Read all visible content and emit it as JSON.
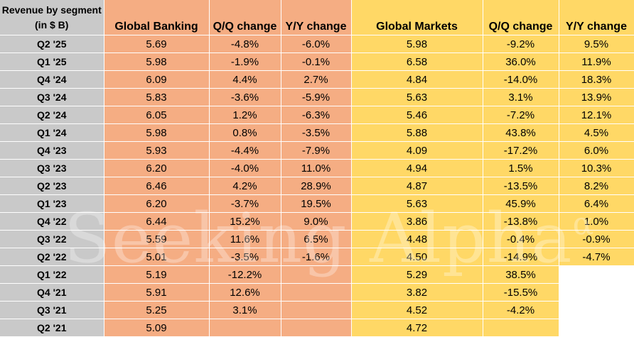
{
  "header": {
    "label": "Revenue by segment (in $ B)",
    "banking": "Global Banking",
    "banking_qq": "Q/Q change",
    "banking_yy": "Y/Y change",
    "markets": "Global Markets",
    "markets_qq": "Q/Q change",
    "markets_yy": "Y/Y change"
  },
  "rows": [
    {
      "period": "Q2 '25",
      "gb": "5.69",
      "gb_qq": "-4.8%",
      "gb_yy": "-6.0%",
      "gm": "5.98",
      "gm_qq": "-9.2%",
      "gm_yy": "9.5%"
    },
    {
      "period": "Q1 '25",
      "gb": "5.98",
      "gb_qq": "-1.9%",
      "gb_yy": "-0.1%",
      "gm": "6.58",
      "gm_qq": "36.0%",
      "gm_yy": "11.9%"
    },
    {
      "period": "Q4 '24",
      "gb": "6.09",
      "gb_qq": "4.4%",
      "gb_yy": "2.7%",
      "gm": "4.84",
      "gm_qq": "-14.0%",
      "gm_yy": "18.3%"
    },
    {
      "period": "Q3 '24",
      "gb": "5.83",
      "gb_qq": "-3.6%",
      "gb_yy": "-5.9%",
      "gm": "5.63",
      "gm_qq": "3.1%",
      "gm_yy": "13.9%"
    },
    {
      "period": "Q2 '24",
      "gb": "6.05",
      "gb_qq": "1.2%",
      "gb_yy": "-6.3%",
      "gm": "5.46",
      "gm_qq": "-7.2%",
      "gm_yy": "12.1%"
    },
    {
      "period": "Q1 '24",
      "gb": "5.98",
      "gb_qq": "0.8%",
      "gb_yy": "-3.5%",
      "gm": "5.88",
      "gm_qq": "43.8%",
      "gm_yy": "4.5%"
    },
    {
      "period": "Q4 '23",
      "gb": "5.93",
      "gb_qq": "-4.4%",
      "gb_yy": "-7.9%",
      "gm": "4.09",
      "gm_qq": "-17.2%",
      "gm_yy": "6.0%"
    },
    {
      "period": "Q3 '23",
      "gb": "6.20",
      "gb_qq": "-4.0%",
      "gb_yy": "11.0%",
      "gm": "4.94",
      "gm_qq": "1.5%",
      "gm_yy": "10.3%"
    },
    {
      "period": "Q2 '23",
      "gb": "6.46",
      "gb_qq": "4.2%",
      "gb_yy": "28.9%",
      "gm": "4.87",
      "gm_qq": "-13.5%",
      "gm_yy": "8.2%"
    },
    {
      "period": "Q1 '23",
      "gb": "6.20",
      "gb_qq": "-3.7%",
      "gb_yy": "19.5%",
      "gm": "5.63",
      "gm_qq": "45.9%",
      "gm_yy": "6.4%"
    },
    {
      "period": "Q4 '22",
      "gb": "6.44",
      "gb_qq": "15.2%",
      "gb_yy": "9.0%",
      "gm": "3.86",
      "gm_qq": "-13.8%",
      "gm_yy": "1.0%"
    },
    {
      "period": "Q3 '22",
      "gb": "5.59",
      "gb_qq": "11.6%",
      "gb_yy": "6.5%",
      "gm": "4.48",
      "gm_qq": "-0.4%",
      "gm_yy": "-0.9%"
    },
    {
      "period": "Q2 '22",
      "gb": "5.01",
      "gb_qq": "-3.5%",
      "gb_yy": "-1.6%",
      "gm": "4.50",
      "gm_qq": "-14.9%",
      "gm_yy": "-4.7%"
    },
    {
      "period": "Q1 '22",
      "gb": "5.19",
      "gb_qq": "-12.2%",
      "gb_yy": "",
      "gm": "5.29",
      "gm_qq": "38.5%",
      "gm_yy": ""
    },
    {
      "period": "Q4 '21",
      "gb": "5.91",
      "gb_qq": "12.6%",
      "gb_yy": "",
      "gm": "3.82",
      "gm_qq": "-15.5%",
      "gm_yy": ""
    },
    {
      "period": "Q3 '21",
      "gb": "5.25",
      "gb_qq": "3.1%",
      "gb_yy": "",
      "gm": "4.52",
      "gm_qq": "-4.2%",
      "gm_yy": ""
    },
    {
      "period": "Q2 '21",
      "gb": "5.09",
      "gb_qq": "",
      "gb_yy": "",
      "gm": "4.72",
      "gm_qq": "",
      "gm_yy": ""
    }
  ],
  "watermark": {
    "text": "Seeking Alpha",
    "mark": "α"
  },
  "colors": {
    "label_column": "#c9c9c9",
    "banking_columns": "#f5ad83",
    "markets_columns": "#ffd866",
    "yy_blank_cell": "#ffffff"
  }
}
